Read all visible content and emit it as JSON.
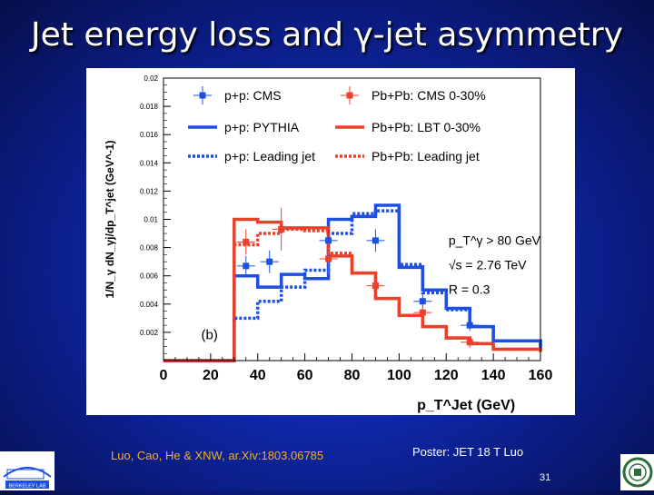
{
  "title": "Jet energy loss and γ-jet asymmetry",
  "citation": "Luo, Cao, He & XNW, ar.Xiv:1803.06785",
  "poster": "Poster: JET 18 T Luo",
  "page_number": "31",
  "logo_left_text": "BERKELEY LAB",
  "chart_data": {
    "type": "line",
    "xlabel": "p_T^Jet (GeV)",
    "ylabel": "1/N_γ dN_γj/dp_T^jet (GeV^-1)",
    "xlim": [
      0,
      160
    ],
    "ylim": [
      0,
      0.02
    ],
    "x_ticks": [
      "0",
      "20",
      "40",
      "60",
      "80",
      "100",
      "120",
      "140",
      "160"
    ],
    "y_ticks": [
      "0.002",
      "0.004",
      "0.006",
      "0.008",
      "0.01",
      "0.012",
      "0.014",
      "0.016",
      "0.018",
      "0.02"
    ],
    "panel_label": "(b)",
    "annotations": [
      "p_T^γ > 80 GeV",
      "√s = 2.76 TeV",
      "R = 0.3"
    ],
    "legend": [
      {
        "label": "p+p: CMS",
        "style": "marker",
        "color": "#1f4fe0"
      },
      {
        "label": "Pb+Pb: CMS 0-30%",
        "style": "marker",
        "color": "#e8412c"
      },
      {
        "label": "p+p: PYTHIA",
        "style": "solid",
        "color": "#1f4fe0"
      },
      {
        "label": "Pb+Pb: LBT 0-30%",
        "style": "solid",
        "color": "#e8412c"
      },
      {
        "label": "p+p: Leading jet",
        "style": "dotted",
        "color": "#1f4fe0"
      },
      {
        "label": "Pb+Pb: Leading jet",
        "style": "dotted",
        "color": "#e8412c"
      }
    ],
    "series": [
      {
        "name": "p+p: PYTHIA",
        "style": "solid",
        "color": "#1f4fe0",
        "edges": [
          0,
          30,
          40,
          50,
          60,
          70,
          80,
          90,
          100,
          110,
          120,
          130,
          140,
          160
        ],
        "values": [
          0,
          0.006,
          0.0052,
          0.0061,
          0.0058,
          0.01,
          0.0102,
          0.011,
          0.0066,
          0.005,
          0.0037,
          0.0024,
          0.0014,
          0.0008
        ]
      },
      {
        "name": "Pb+Pb: LBT 0-30%",
        "style": "solid",
        "color": "#e8412c",
        "edges": [
          0,
          30,
          40,
          50,
          60,
          70,
          80,
          90,
          100,
          110,
          120,
          130,
          140,
          160
        ],
        "values": [
          0,
          0.01,
          0.0098,
          0.0094,
          0.0094,
          0.0074,
          0.0062,
          0.0044,
          0.0032,
          0.0024,
          0.0016,
          0.0012,
          0.0008,
          0.0006
        ]
      },
      {
        "name": "p+p: Leading jet",
        "style": "dotted",
        "color": "#1f4fe0",
        "edges": [
          0,
          30,
          40,
          50,
          60,
          70,
          80,
          90,
          100,
          110,
          120,
          130,
          140,
          160
        ],
        "values": [
          0,
          0.003,
          0.0042,
          0.0052,
          0.0064,
          0.009,
          0.0104,
          0.0106,
          0.0068,
          0.0048,
          0.0036,
          0.0024,
          0.0014,
          0.0008
        ]
      },
      {
        "name": "Pb+Pb: Leading jet",
        "style": "dotted",
        "color": "#e8412c",
        "edges": [
          0,
          30,
          40,
          50,
          60,
          70,
          80,
          90,
          100,
          110,
          120,
          130,
          140,
          160
        ],
        "values": [
          0,
          0.0082,
          0.009,
          0.0093,
          0.0092,
          0.0076,
          0.0062,
          0.0044,
          0.0032,
          0.0024,
          0.0016,
          0.0012,
          0.0008,
          0.0006
        ]
      },
      {
        "name": "p+p: CMS",
        "style": "marker",
        "color": "#1f4fe0",
        "x": [
          35,
          45,
          70,
          90,
          110,
          130
        ],
        "y": [
          0.0067,
          0.007,
          0.0085,
          0.0085,
          0.0042,
          0.0025
        ],
        "err": [
          0.0007,
          0.0008,
          0.0008,
          0.0008,
          0.0005,
          0.0004
        ]
      },
      {
        "name": "Pb+Pb: CMS 0-30%",
        "style": "marker",
        "color": "#e8412c",
        "x": [
          35,
          50,
          70,
          90,
          110,
          130
        ],
        "y": [
          0.0084,
          0.0093,
          0.0072,
          0.0053,
          0.0034,
          0.0013
        ],
        "err": [
          0.0009,
          0.0015,
          0.0011,
          0.0008,
          0.0006,
          0.0004
        ]
      }
    ]
  }
}
